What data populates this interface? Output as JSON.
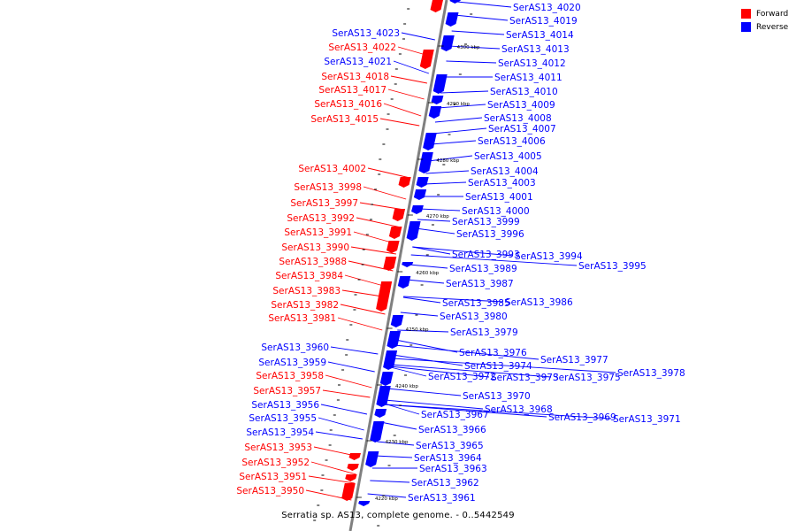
{
  "colors": {
    "forward": "#ff0000",
    "reverse": "#0000ff",
    "axis": "#808080",
    "tick": "#000000"
  },
  "legend": [
    {
      "label": "Forward",
      "color": "#ff0000"
    },
    {
      "label": "Reverse",
      "color": "#0000ff"
    }
  ],
  "caption": "Serratia sp. AS13, complete genome. - 0..5442549",
  "scale_labels": [
    "4300 kbp",
    "4290 kbp",
    "4280 kbp",
    "4270 kbp",
    "4260 kbp",
    "4250 kbp",
    "4240 kbp",
    "4230 kbp",
    "4220 kbp"
  ],
  "genes_forward": [
    "SerAS13_4023",
    "SerAS13_4022",
    "SerAS13_4021",
    "SerAS13_4018",
    "SerAS13_4017",
    "SerAS13_4016",
    "SerAS13_4015",
    "SerAS13_4002",
    "SerAS13_3998",
    "SerAS13_3997",
    "SerAS13_3992",
    "SerAS13_3991",
    "SerAS13_3990",
    "SerAS13_3988",
    "SerAS13_3984",
    "SerAS13_3983",
    "SerAS13_3982",
    "SerAS13_3981",
    "SerAS13_3960",
    "SerAS13_3959",
    "SerAS13_3958",
    "SerAS13_3957",
    "SerAS13_3956",
    "SerAS13_3955",
    "SerAS13_3954",
    "SerAS13_3953",
    "SerAS13_3952",
    "SerAS13_3951",
    "SerAS13_3950"
  ],
  "genes_forward_color": [
    "blue",
    "red",
    "blue",
    "red",
    "red",
    "red",
    "red",
    "red",
    "red",
    "red",
    "red",
    "red",
    "red",
    "red",
    "red",
    "red",
    "red",
    "red",
    "blue",
    "blue",
    "red",
    "red",
    "blue",
    "blue",
    "blue",
    "red",
    "red",
    "red",
    "red"
  ],
  "genes_reverse": [
    "SerAS13_4020",
    "SerAS13_4019",
    "SerAS13_4014",
    "SerAS13_4013",
    "SerAS13_4012",
    "SerAS13_4011",
    "SerAS13_4010",
    "SerAS13_4009",
    "SerAS13_4008",
    "SerAS13_4007",
    "SerAS13_4006",
    "SerAS13_4005",
    "SerAS13_4004",
    "SerAS13_4003",
    "SerAS13_4001",
    "SerAS13_4000",
    "SerAS13_3999",
    "SerAS13_3996",
    "SerAS13_3993",
    "SerAS13_3994",
    "SerAS13_3995",
    "SerAS13_3989",
    "SerAS13_3987",
    "SerAS13_3985",
    "SerAS13_3986",
    "SerAS13_3980",
    "SerAS13_3979",
    "SerAS13_3976",
    "SerAS13_3977",
    "SerAS13_3974",
    "SerAS13_3972",
    "SerAS13_3973",
    "SerAS13_3975",
    "SerAS13_3978",
    "SerAS13_3970",
    "SerAS13_3968",
    "SerAS13_3967",
    "SerAS13_3969",
    "SerAS13_3971",
    "SerAS13_3966",
    "SerAS13_3965",
    "SerAS13_3964",
    "SerAS13_3963",
    "SerAS13_3962",
    "SerAS13_3961"
  ]
}
